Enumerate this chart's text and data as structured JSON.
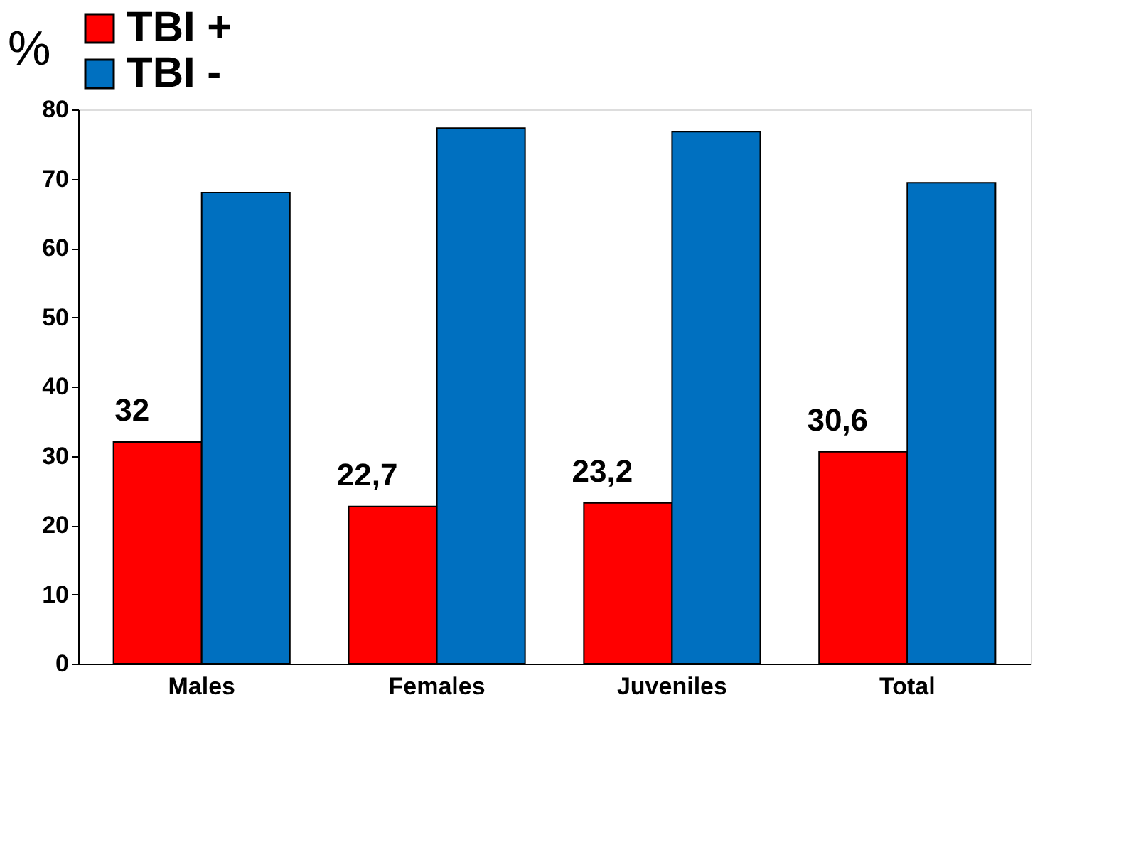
{
  "chart_data": {
    "type": "bar",
    "ylabel": "%",
    "categories": [
      "Males",
      "Females",
      "Juveniles",
      "Total"
    ],
    "series": [
      {
        "name": "TBI +",
        "color": "#ff0000",
        "values": [
          32,
          22.7,
          23.2,
          30.6
        ],
        "value_labels": [
          "32",
          "22,7",
          "23,2",
          "30,6"
        ]
      },
      {
        "name": "TBI -",
        "color": "#0070c0",
        "values": [
          68,
          77.3,
          76.8,
          69.4
        ]
      }
    ],
    "ylim": [
      0,
      80
    ],
    "yticks": [
      0,
      10,
      20,
      30,
      40,
      50,
      60,
      70,
      80
    ],
    "grid": false,
    "legend": "top"
  }
}
